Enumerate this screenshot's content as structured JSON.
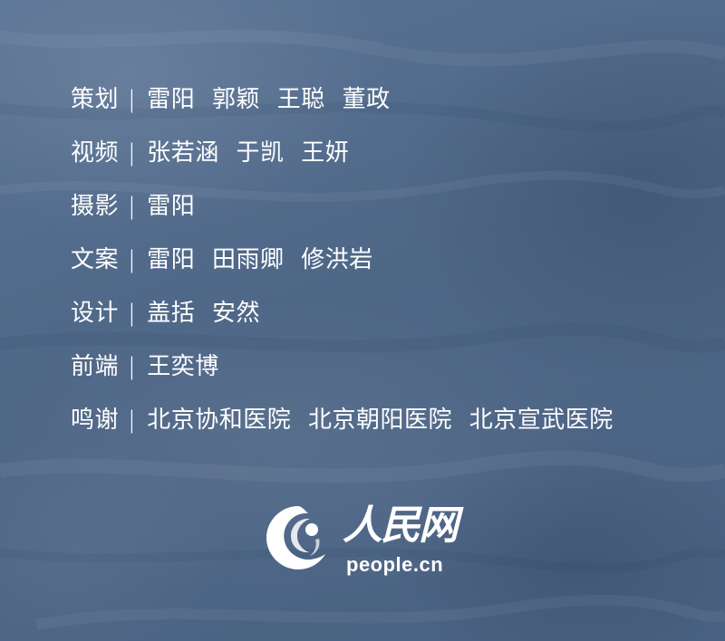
{
  "credits": [
    {
      "role": "策划",
      "separator": "|",
      "names": "雷阳 郭颖 王聪 董政"
    },
    {
      "role": "视频",
      "separator": "|",
      "names": "张若涵 于凯 王妍"
    },
    {
      "role": "摄影",
      "separator": "|",
      "names": "雷阳"
    },
    {
      "role": "文案",
      "separator": "|",
      "names": "雷阳 田雨卿 修洪岩"
    },
    {
      "role": "设计",
      "separator": "|",
      "names": "盖括 安然"
    },
    {
      "role": "前端",
      "separator": "|",
      "names": "王奕博"
    },
    {
      "role": "鸣谢",
      "separator": "|",
      "names": "北京协和医院 北京朝阳医院 北京宣武医院"
    }
  ],
  "logo": {
    "wordmark": "人民网",
    "domain": "people.cn",
    "emblem_icon": "people-daily-emblem-icon"
  },
  "colors": {
    "background": "#50698a",
    "text": "#ffffff"
  }
}
